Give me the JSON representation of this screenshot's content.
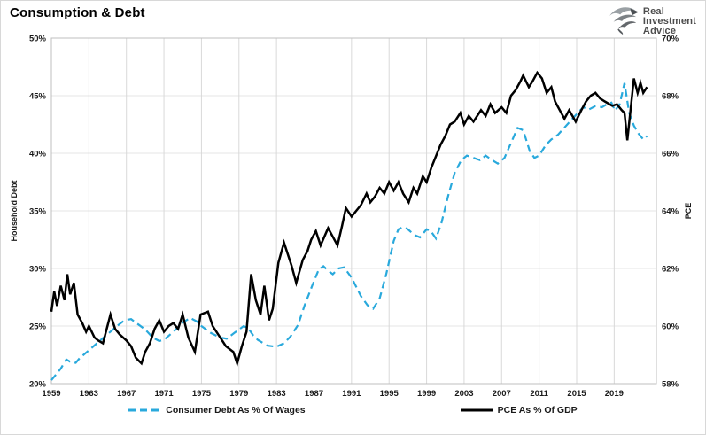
{
  "header": {
    "title": "Consumption & Debt",
    "logo": {
      "icon": "eagle-icon",
      "line1": "Real",
      "line2": "Investment",
      "line3": "Advice"
    }
  },
  "chart_data": {
    "type": "line",
    "title": "Consumption & Debt",
    "grid": true,
    "legend_position": "bottom",
    "x_range": [
      1959,
      2023.5
    ],
    "x_tick_labels": [
      "1959",
      "1963",
      "1967",
      "1971",
      "1975",
      "1979",
      "1983",
      "1987",
      "1991",
      "1995",
      "1999",
      "2003",
      "2007",
      "2011",
      "2015",
      "2019"
    ],
    "x_tick_years": [
      1959,
      1963,
      1967,
      1971,
      1975,
      1979,
      1983,
      1987,
      1991,
      1995,
      1999,
      2003,
      2007,
      2011,
      2015,
      2019
    ],
    "left_axis": {
      "label": "Household Debt",
      "range": [
        20,
        50
      ],
      "tick_labels": [
        "50%",
        "45%",
        "40%",
        "35%",
        "30%",
        "25%",
        "20%"
      ],
      "tick_values": [
        50,
        45,
        40,
        35,
        30,
        25,
        20
      ]
    },
    "right_axis": {
      "label": "PCE",
      "range": [
        58,
        70
      ],
      "tick_labels": [
        "70%",
        "68%",
        "66%",
        "64%",
        "62%",
        "60%",
        "58%"
      ],
      "tick_values": [
        70,
        68,
        66,
        64,
        62,
        60,
        58
      ]
    },
    "colors": {
      "consumer_debt": "#29A9DC",
      "pce": "#000000",
      "grid_vertical": "#d9d9d9",
      "grid_horizontal": "#e4e4e4",
      "plot_border": "#bfbfbf"
    },
    "series": [
      {
        "name": "Consumer Debt As % Of Wages",
        "axis": "left",
        "color": "#29A9DC",
        "style": "dashed",
        "x": [
          1959,
          1959.5,
          1960,
          1960.6,
          1961,
          1961.6,
          1962,
          1963,
          1964,
          1965,
          1966,
          1966.8,
          1967.5,
          1968,
          1969,
          1969.8,
          1970.5,
          1971,
          1972,
          1973,
          1973.8,
          1974.5,
          1975,
          1976,
          1977,
          1977.7,
          1978.5,
          1979.5,
          1980,
          1980.5,
          1981,
          1982,
          1983,
          1983.8,
          1984.5,
          1985.3,
          1986,
          1986.8,
          1987.5,
          1988,
          1988.5,
          1989,
          1989.6,
          1990.2,
          1991,
          1992,
          1992.7,
          1993.3,
          1994,
          1994.7,
          1995.5,
          1996,
          1996.5,
          1997,
          1997.7,
          1998.3,
          1999,
          1999.4,
          2000,
          2000.6,
          2001.3,
          2002,
          2002.7,
          2003.3,
          2004,
          2004.7,
          2005.3,
          2006,
          2006.6,
          2007.3,
          2008,
          2008.7,
          2009.3,
          2010,
          2010.5,
          2011,
          2011.7,
          2012.3,
          2013,
          2014,
          2015,
          2015.7,
          2016.3,
          2017,
          2017.7,
          2018.3,
          2018.7,
          2019.1,
          2019.6,
          2020.1,
          2020.6,
          2021.1,
          2021.6,
          2022.1,
          2022.5
        ],
        "y": [
          20.3,
          20.8,
          21.3,
          22.1,
          21.9,
          21.8,
          22.2,
          22.9,
          23.6,
          24.3,
          25.0,
          25.5,
          25.6,
          25.3,
          24.7,
          24.0,
          23.7,
          23.8,
          24.5,
          25.3,
          25.7,
          25.4,
          25.0,
          24.4,
          24.0,
          23.9,
          24.4,
          25.0,
          24.8,
          24.2,
          23.8,
          23.3,
          23.2,
          23.5,
          24.1,
          25.1,
          26.8,
          28.5,
          29.9,
          30.2,
          29.8,
          29.5,
          30.0,
          30.1,
          29.2,
          27.6,
          26.8,
          26.5,
          27.4,
          29.5,
          32.4,
          33.4,
          33.6,
          33.4,
          32.9,
          32.7,
          33.4,
          33.3,
          32.6,
          34.0,
          36.3,
          38.3,
          39.4,
          39.8,
          39.6,
          39.4,
          39.8,
          39.4,
          39.1,
          39.6,
          40.9,
          42.2,
          42.0,
          40.2,
          39.6,
          39.8,
          40.7,
          41.2,
          41.6,
          42.5,
          43.4,
          44.0,
          43.8,
          44.1,
          44.0,
          44.3,
          44.4,
          43.7,
          44.3,
          46.1,
          43.5,
          42.4,
          41.7,
          41.2,
          41.5
        ]
      },
      {
        "name": "PCE As % Of GDP",
        "axis": "right",
        "color": "#000000",
        "style": "solid",
        "x": [
          1959,
          1959.3,
          1959.6,
          1960,
          1960.4,
          1960.7,
          1961,
          1961.4,
          1961.8,
          1962.3,
          1962.7,
          1963,
          1963.6,
          1964,
          1964.5,
          1965.3,
          1965.8,
          1966.3,
          1967,
          1967.5,
          1968,
          1968.6,
          1969,
          1969.5,
          1970,
          1970.5,
          1971,
          1971.5,
          1972,
          1972.5,
          1973,
          1973.6,
          1974.3,
          1974.9,
          1975.7,
          1976.2,
          1977,
          1977.6,
          1978.4,
          1978.8,
          1979.3,
          1979.8,
          1980.3,
          1980.8,
          1981.3,
          1981.7,
          1982.2,
          1982.6,
          1983.2,
          1983.8,
          1984.6,
          1985.1,
          1985.8,
          1986.3,
          1986.7,
          1987.2,
          1987.7,
          1988.5,
          1989,
          1989.5,
          1990,
          1990.4,
          1991,
          1991.5,
          1992,
          1992.6,
          1993,
          1993.5,
          1994,
          1994.5,
          1995,
          1995.5,
          1996,
          1996.5,
          1997.1,
          1997.6,
          1998,
          1998.6,
          1999,
          1999.5,
          2000,
          2000.5,
          2001,
          2001.5,
          2002,
          2002.6,
          2003,
          2003.5,
          2004,
          2004.8,
          2005.3,
          2005.8,
          2006.3,
          2007,
          2007.5,
          2008,
          2008.5,
          2009,
          2009.3,
          2009.9,
          2010.3,
          2010.8,
          2011.3,
          2011.8,
          2012.3,
          2012.7,
          2013.2,
          2013.7,
          2014.2,
          2014.9,
          2015.5,
          2016,
          2016.5,
          2017,
          2017.5,
          2018,
          2018.8,
          2019.3,
          2019.8,
          2020.1,
          2020.4,
          2021.1,
          2021.5,
          2021.8,
          2022.1,
          2022.5
        ],
        "y": [
          60.5,
          61.2,
          60.7,
          61.4,
          60.9,
          61.8,
          61.1,
          61.5,
          60.4,
          60.1,
          59.8,
          60.0,
          59.6,
          59.5,
          59.4,
          60.4,
          59.9,
          59.7,
          59.5,
          59.3,
          58.9,
          58.7,
          59.1,
          59.4,
          59.9,
          60.2,
          59.8,
          60.0,
          60.1,
          59.9,
          60.4,
          59.6,
          59.1,
          60.4,
          60.5,
          60.0,
          59.6,
          59.3,
          59.1,
          58.7,
          59.3,
          59.8,
          61.8,
          60.9,
          60.4,
          61.4,
          60.2,
          60.6,
          62.2,
          62.9,
          62.1,
          61.5,
          62.3,
          62.6,
          63.0,
          63.3,
          62.8,
          63.4,
          63.1,
          62.8,
          63.5,
          64.1,
          63.8,
          64.0,
          64.2,
          64.6,
          64.3,
          64.5,
          64.8,
          64.6,
          65.0,
          64.7,
          65.0,
          64.6,
          64.3,
          64.8,
          64.6,
          65.2,
          65.0,
          65.5,
          65.9,
          66.3,
          66.6,
          67.0,
          67.1,
          67.4,
          67.0,
          67.3,
          67.1,
          67.5,
          67.3,
          67.7,
          67.4,
          67.6,
          67.4,
          68.0,
          68.2,
          68.5,
          68.7,
          68.3,
          68.5,
          68.8,
          68.6,
          68.1,
          68.3,
          67.8,
          67.5,
          67.2,
          67.5,
          67.1,
          67.5,
          67.8,
          68.0,
          68.1,
          67.9,
          67.8,
          67.65,
          67.7,
          67.5,
          67.4,
          66.45,
          68.6,
          68.1,
          68.45,
          68.1,
          68.3
        ]
      }
    ]
  }
}
